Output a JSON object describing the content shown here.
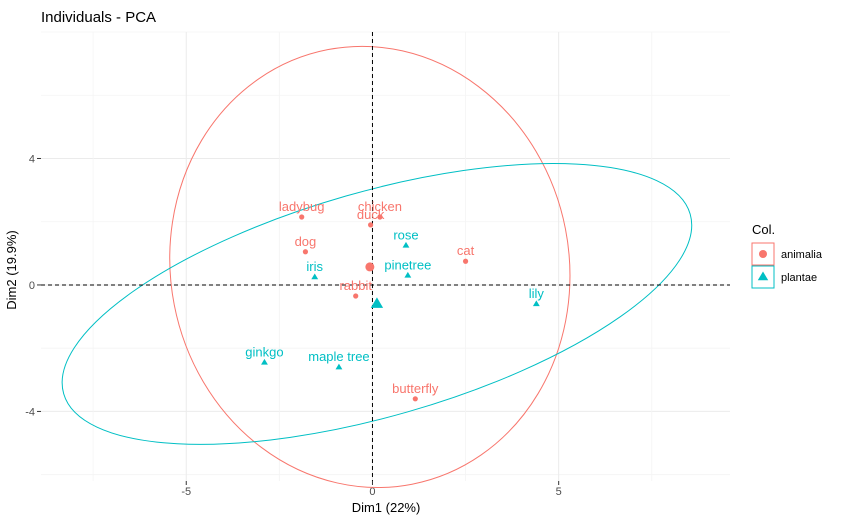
{
  "chart_data": {
    "type": "scatter",
    "title": "Individuals - PCA",
    "xlabel": "Dim1 (22%)",
    "ylabel": "Dim2 (19.9%)",
    "xlim": [
      -8.9,
      9.6
    ],
    "ylim": [
      -6.2,
      8.0
    ],
    "xticks": [
      -5,
      0,
      5
    ],
    "yticks": [
      -4,
      0,
      4
    ],
    "grid": true,
    "legend": {
      "title": "Col.",
      "position": "right",
      "entries": [
        {
          "label": "animalia",
          "color": "#F8766D",
          "shape": "circle"
        },
        {
          "label": "plantae",
          "color": "#00BFC4",
          "shape": "triangle"
        }
      ]
    },
    "series": [
      {
        "name": "animalia",
        "color": "#F8766D",
        "shape": "circle",
        "points": [
          {
            "label": "ladybug",
            "x": -1.9,
            "y": 2.15
          },
          {
            "label": "chicken",
            "x": 0.2,
            "y": 2.15
          },
          {
            "label": "duck",
            "x": -0.05,
            "y": 1.9
          },
          {
            "label": "dog",
            "x": -1.8,
            "y": 1.05
          },
          {
            "label": "cat",
            "x": 2.5,
            "y": 0.75
          },
          {
            "label": "rabbit",
            "x": -0.45,
            "y": -0.35
          },
          {
            "label": "butterfly",
            "x": 1.15,
            "y": -3.6
          }
        ],
        "centroid": {
          "x": -0.07,
          "y": 0.57
        },
        "ellipse": {
          "cx": -0.07,
          "cy": 0.57,
          "rx": 5.35,
          "ry": 7.0,
          "angle": 11
        }
      },
      {
        "name": "plantae",
        "color": "#00BFC4",
        "shape": "triangle",
        "points": [
          {
            "label": "rose",
            "x": 0.9,
            "y": 1.25
          },
          {
            "label": "iris",
            "x": -1.55,
            "y": 0.25
          },
          {
            "label": "pinetree",
            "x": 0.95,
            "y": 0.3
          },
          {
            "label": "lily",
            "x": 4.4,
            "y": -0.6
          },
          {
            "label": "ginkgo",
            "x": -2.9,
            "y": -2.45
          },
          {
            "label": "maple tree",
            "x": -0.9,
            "y": -2.6
          }
        ],
        "centroid": {
          "x": 0.12,
          "y": -0.6
        },
        "ellipse": {
          "cx": 0.12,
          "cy": -0.6,
          "rx": 8.75,
          "ry": 3.55,
          "angle": 16
        }
      }
    ]
  }
}
